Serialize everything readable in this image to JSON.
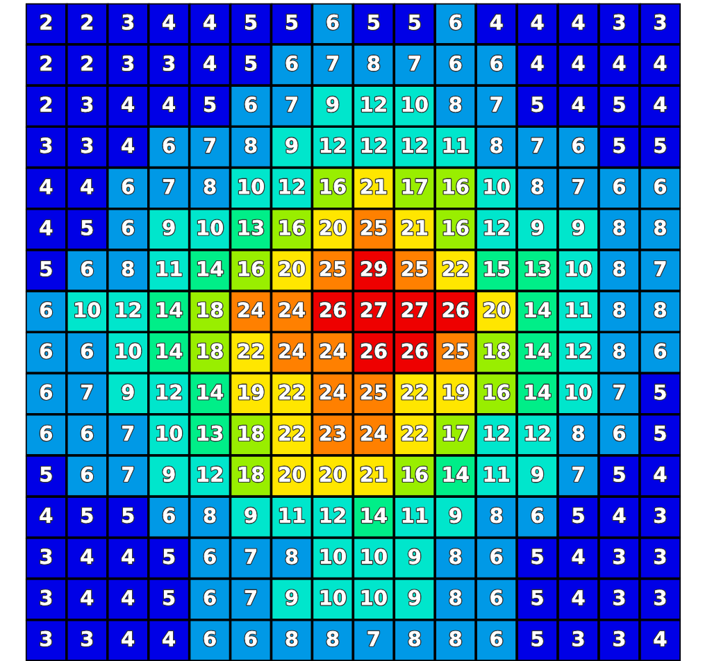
{
  "chart_data": {
    "type": "heatmap",
    "data_labels": true,
    "categories": [
      null,
      null,
      null,
      null,
      null,
      null,
      null,
      null,
      null,
      null,
      null,
      null,
      null,
      null,
      null,
      null
    ],
    "y_categories": [
      null,
      null,
      null,
      null,
      null,
      null,
      null,
      null,
      null,
      null,
      null,
      null,
      null,
      null,
      null,
      null
    ],
    "cells": [
      [
        2,
        2,
        3,
        4,
        4,
        5,
        5,
        6,
        5,
        5,
        6,
        4,
        4,
        4,
        3,
        3
      ],
      [
        2,
        2,
        3,
        3,
        4,
        5,
        6,
        7,
        8,
        7,
        6,
        6,
        4,
        4,
        4,
        4
      ],
      [
        2,
        3,
        4,
        4,
        5,
        6,
        7,
        9,
        12,
        10,
        8,
        7,
        5,
        4,
        5,
        4
      ],
      [
        3,
        3,
        4,
        6,
        7,
        8,
        9,
        12,
        12,
        12,
        11,
        8,
        7,
        6,
        5,
        5
      ],
      [
        4,
        4,
        6,
        7,
        8,
        10,
        12,
        16,
        21,
        17,
        16,
        10,
        8,
        7,
        6,
        6
      ],
      [
        4,
        5,
        6,
        9,
        10,
        13,
        16,
        20,
        25,
        21,
        16,
        12,
        9,
        9,
        8,
        8
      ],
      [
        5,
        6,
        8,
        11,
        14,
        16,
        20,
        25,
        29,
        25,
        22,
        15,
        13,
        10,
        8,
        7
      ],
      [
        6,
        10,
        12,
        14,
        18,
        24,
        24,
        26,
        27,
        27,
        26,
        20,
        14,
        11,
        8,
        8
      ],
      [
        6,
        6,
        10,
        14,
        18,
        22,
        24,
        24,
        26,
        26,
        25,
        18,
        14,
        12,
        8,
        6
      ],
      [
        6,
        7,
        9,
        12,
        14,
        19,
        22,
        24,
        25,
        22,
        19,
        16,
        14,
        10,
        7,
        5
      ],
      [
        6,
        6,
        7,
        10,
        13,
        18,
        22,
        23,
        24,
        22,
        17,
        12,
        12,
        8,
        6,
        5
      ],
      [
        5,
        6,
        7,
        9,
        12,
        18,
        20,
        20,
        21,
        16,
        14,
        11,
        9,
        7,
        5,
        4
      ],
      [
        4,
        5,
        5,
        6,
        8,
        9,
        11,
        12,
        14,
        11,
        9,
        8,
        6,
        5,
        4,
        3
      ],
      [
        3,
        4,
        4,
        5,
        6,
        7,
        8,
        10,
        10,
        9,
        8,
        6,
        5,
        4,
        3,
        3
      ],
      [
        3,
        4,
        4,
        5,
        6,
        7,
        9,
        10,
        10,
        9,
        8,
        6,
        5,
        4,
        3,
        3
      ],
      [
        3,
        3,
        4,
        4,
        6,
        6,
        8,
        8,
        7,
        8,
        8,
        6,
        5,
        3,
        3,
        4
      ]
    ]
  }
}
